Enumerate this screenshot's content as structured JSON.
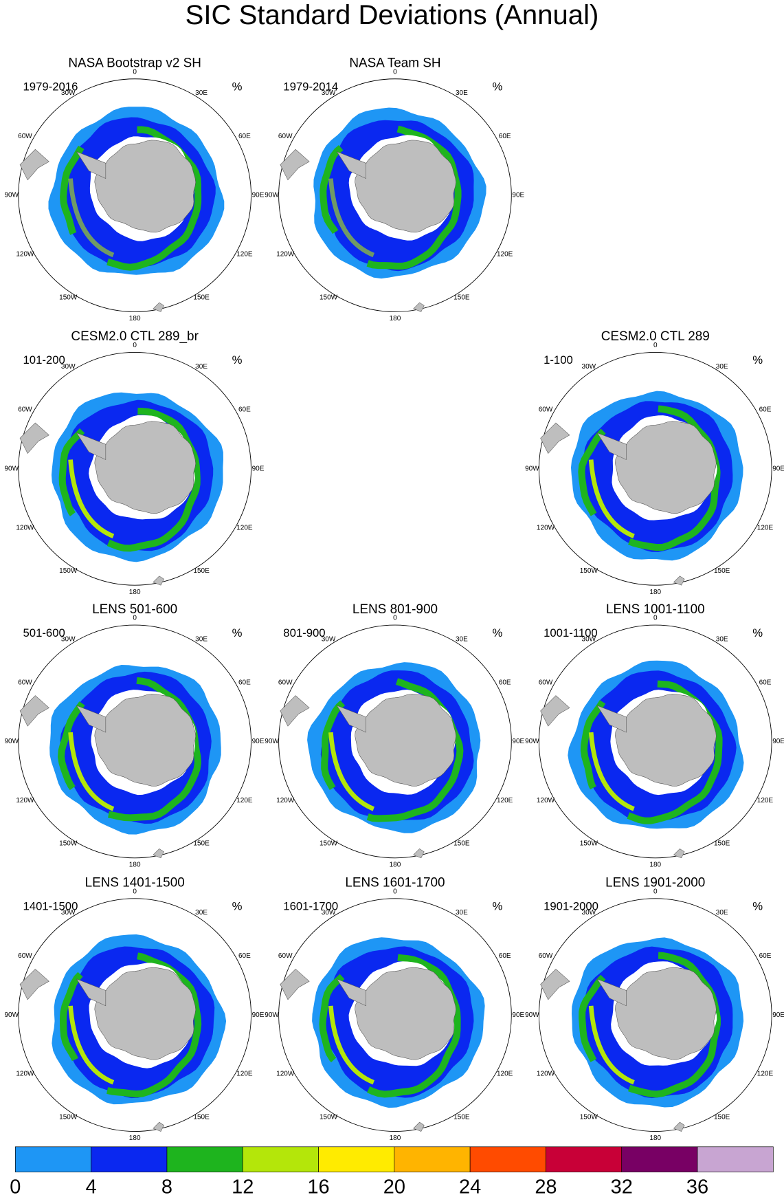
{
  "title": "SIC Standard Deviations (Annual)",
  "unit": "%",
  "lon_labels": [
    "0",
    "30E",
    "60E",
    "90E",
    "120E",
    "150E",
    "180",
    "150W",
    "120W",
    "90W",
    "60W",
    "30W"
  ],
  "panels": [
    {
      "title": "NASA Bootstrap v2 SH",
      "period": "1979-2016"
    },
    {
      "title": "NASA Team SH",
      "period": "1979-2014"
    },
    {
      "title": "CESM2.0 CTL 289_br",
      "period": "101-200"
    },
    {
      "title": "CESM2.0 CTL 289",
      "period": "1-100"
    },
    {
      "title": "LENS 501-600",
      "period": "501-600"
    },
    {
      "title": "LENS 801-900",
      "period": "801-900"
    },
    {
      "title": "LENS 1001-1100",
      "period": "1001-1100"
    },
    {
      "title": "LENS 1401-1500",
      "period": "1401-1500"
    },
    {
      "title": "LENS 1601-1700",
      "period": "1601-1700"
    },
    {
      "title": "LENS 1901-2000",
      "period": "1901-2000"
    }
  ],
  "colorbar": {
    "ticks": [
      0,
      4,
      8,
      12,
      16,
      20,
      24,
      28,
      32,
      36
    ],
    "colors": [
      "#1e96f5",
      "#0a28f0",
      "#1eb41e",
      "#b4e60a",
      "#ffeb00",
      "#ffb400",
      "#ff4b00",
      "#c80037",
      "#780064",
      "#c8a5d2"
    ]
  }
}
